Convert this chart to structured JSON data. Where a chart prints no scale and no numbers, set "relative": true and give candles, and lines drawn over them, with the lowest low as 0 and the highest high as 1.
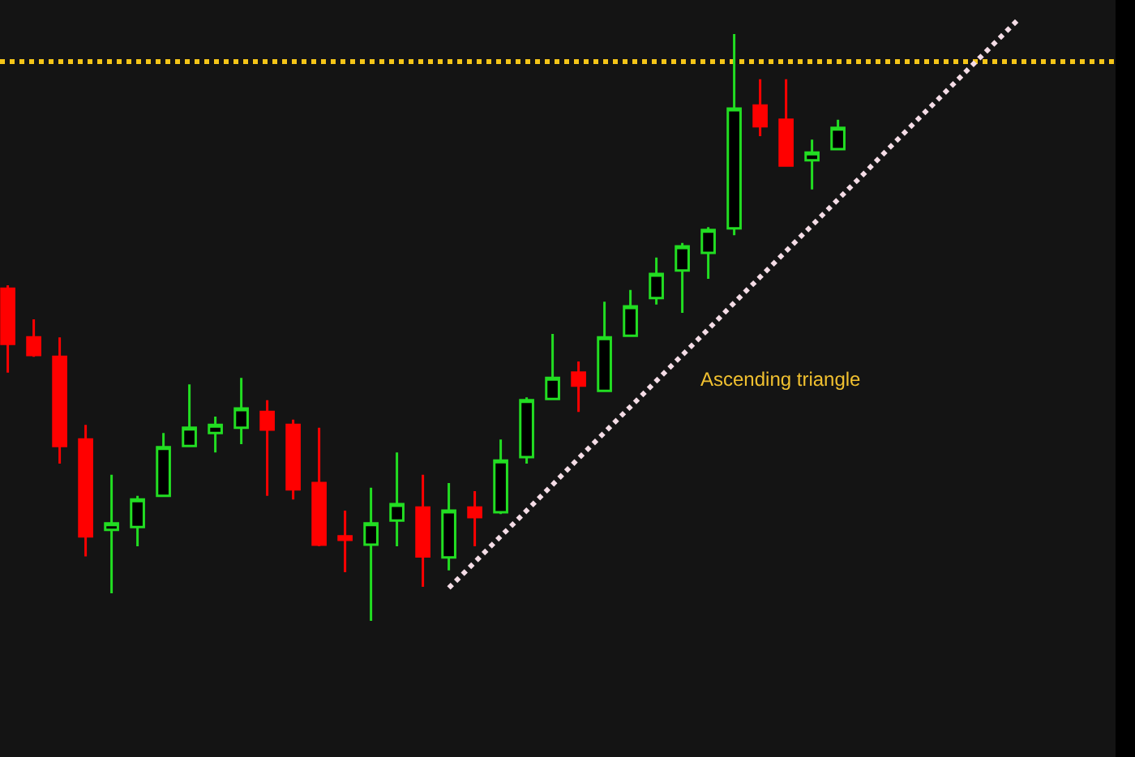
{
  "chart_data": {
    "type": "candlestick",
    "relative": true,
    "categories": [
      null,
      null,
      null,
      null,
      null,
      null,
      null,
      null,
      null,
      null,
      null,
      null,
      null,
      null,
      null,
      null,
      null,
      null,
      null,
      null,
      null,
      null,
      null,
      null,
      null,
      null,
      null,
      null,
      null,
      null,
      null,
      null,
      null,
      null,
      null,
      null,
      null,
      null,
      null,
      null
    ],
    "ohlc": [
      [
        0.566,
        0.572,
        0.423,
        0.472
      ],
      [
        0.483,
        0.514,
        0.45,
        0.453
      ],
      [
        0.45,
        0.483,
        0.268,
        0.298
      ],
      [
        0.309,
        0.334,
        0.11,
        0.144
      ],
      [
        0.155,
        0.249,
        0.047,
        0.166
      ],
      [
        0.16,
        0.213,
        0.127,
        0.207
      ],
      [
        0.213,
        0.32,
        0.213,
        0.296
      ],
      [
        0.298,
        0.403,
        0.296,
        0.329
      ],
      [
        0.32,
        0.348,
        0.287,
        0.334
      ],
      [
        0.329,
        0.414,
        0.301,
        0.362
      ],
      [
        0.356,
        0.376,
        0.213,
        0.326
      ],
      [
        0.334,
        0.343,
        0.207,
        0.224
      ],
      [
        0.235,
        0.329,
        0.127,
        0.13
      ],
      [
        0.144,
        0.188,
        0.083,
        0.138
      ],
      [
        0.13,
        0.227,
        0,
        0.166
      ],
      [
        0.171,
        0.287,
        0.127,
        0.199
      ],
      [
        0.193,
        0.249,
        0.058,
        0.11
      ],
      [
        0.108,
        0.235,
        0.086,
        0.188
      ],
      [
        0.193,
        0.221,
        0.127,
        0.177
      ],
      [
        0.185,
        0.309,
        0.182,
        0.273
      ],
      [
        0.279,
        0.381,
        0.268,
        0.376
      ],
      [
        0.378,
        0.489,
        0.376,
        0.414
      ],
      [
        0.423,
        0.442,
        0.356,
        0.401
      ],
      [
        0.392,
        0.544,
        0.392,
        0.483
      ],
      [
        0.486,
        0.564,
        0.486,
        0.536
      ],
      [
        0.55,
        0.619,
        0.539,
        0.591
      ],
      [
        0.597,
        0.644,
        0.525,
        0.638
      ],
      [
        0.627,
        0.671,
        0.583,
        0.666
      ],
      [
        0.669,
        1,
        0.657,
        0.873
      ],
      [
        0.878,
        0.923,
        0.826,
        0.843
      ],
      [
        0.854,
        0.923,
        0.776,
        0.776
      ],
      [
        0.785,
        0.82,
        0.735,
        0.798
      ],
      [
        0.804,
        0.854,
        0.804,
        0.84
      ],
      null,
      null,
      null,
      null,
      null,
      null,
      null
    ],
    "colors": [
      "#ff0000",
      "#ff0000",
      "#ff0000",
      "#ff0000",
      "#22dd22",
      "#22dd22",
      "#22dd22",
      "#22dd22",
      "#22dd22",
      "#22dd22",
      "#ff0000",
      "#ff0000",
      "#ff0000",
      "#ff0000",
      "#22dd22",
      "#22dd22",
      "#ff0000",
      "#22dd22",
      "#ff0000",
      "#22dd22",
      "#22dd22",
      "#22dd22",
      "#ff0000",
      "#22dd22",
      "#22dd22",
      "#22dd22",
      "#22dd22",
      "#22dd22",
      "#22dd22",
      "#ff0000",
      "#ff0000",
      "#22dd22",
      "#22dd22",
      null,
      null,
      null,
      null,
      null,
      null,
      null
    ],
    "series": [
      {
        "type": "line",
        "values": [
          null,
          null,
          null,
          null,
          null,
          null,
          null,
          null,
          null,
          null,
          null,
          null,
          null,
          null,
          null,
          null,
          null,
          0.056,
          0.1,
          0.144,
          0.188,
          0.232,
          0.277,
          0.321,
          0.365,
          0.409,
          0.453,
          0.497,
          0.542,
          0.586,
          0.63,
          0.674,
          0.718,
          0.762,
          0.807,
          0.851,
          0.895,
          0.939,
          0.983,
          1.027
        ],
        "color": "#f4dce6",
        "line_style": "dotted"
      }
    ],
    "ref_lines": [
      {
        "axis": "y",
        "value": 0.953,
        "color": "#f5c518",
        "line_style": "dotted"
      }
    ],
    "annotations": [
      "Ascending triangle"
    ]
  }
}
